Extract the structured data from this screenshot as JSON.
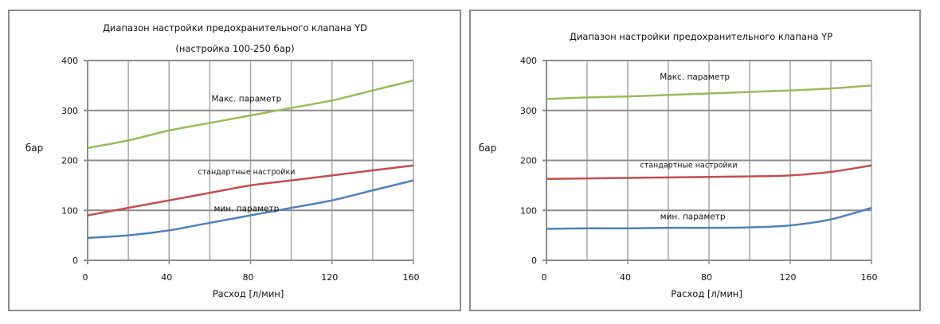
{
  "chart_data": [
    {
      "type": "line",
      "title": "Диапазон настройки предохранительного клапана YD",
      "subtitle": "(настройка 100-250 бар)",
      "xlabel": "Расход [л/мин]",
      "ylabel": "бар",
      "xlim": [
        0,
        160
      ],
      "ylim": [
        0,
        400
      ],
      "xticks": [
        0,
        40,
        80,
        120,
        160
      ],
      "yticks": [
        0,
        100,
        200,
        300,
        400
      ],
      "grid": true,
      "x": [
        0,
        20,
        40,
        60,
        80,
        100,
        120,
        140,
        160
      ],
      "series": [
        {
          "name": "Макс. параметр",
          "color": "#9bbb59",
          "values": [
            225,
            240,
            260,
            275,
            290,
            305,
            320,
            340,
            360
          ]
        },
        {
          "name": "стандартные настройки",
          "color": "#c0504d",
          "values": [
            90,
            105,
            120,
            135,
            150,
            160,
            170,
            180,
            190
          ]
        },
        {
          "name": "мин. параметр",
          "color": "#4f81bd",
          "values": [
            45,
            50,
            60,
            75,
            90,
            105,
            120,
            140,
            160
          ]
        }
      ]
    },
    {
      "type": "line",
      "title": "Диапазон настройки предохранительного клапана YP",
      "subtitle": "",
      "xlabel": "Расход [л/мин]",
      "ylabel": "бар",
      "xlim": [
        0,
        160
      ],
      "ylim": [
        0,
        400
      ],
      "xticks": [
        0,
        40,
        80,
        120,
        160
      ],
      "yticks": [
        0,
        100,
        200,
        300,
        400
      ],
      "grid": true,
      "x": [
        0,
        20,
        40,
        60,
        80,
        100,
        120,
        140,
        160
      ],
      "series": [
        {
          "name": "Макс. параметр",
          "color": "#9bbb59",
          "values": [
            323,
            326,
            328,
            331,
            334,
            337,
            340,
            344,
            350
          ]
        },
        {
          "name": "стандартные настройки",
          "color": "#c0504d",
          "values": [
            163,
            164,
            165,
            166,
            167,
            168,
            170,
            177,
            190
          ]
        },
        {
          "name": "мин. параметр",
          "color": "#4f81bd",
          "values": [
            63,
            64,
            64,
            65,
            65,
            66,
            70,
            82,
            105
          ]
        }
      ]
    }
  ]
}
